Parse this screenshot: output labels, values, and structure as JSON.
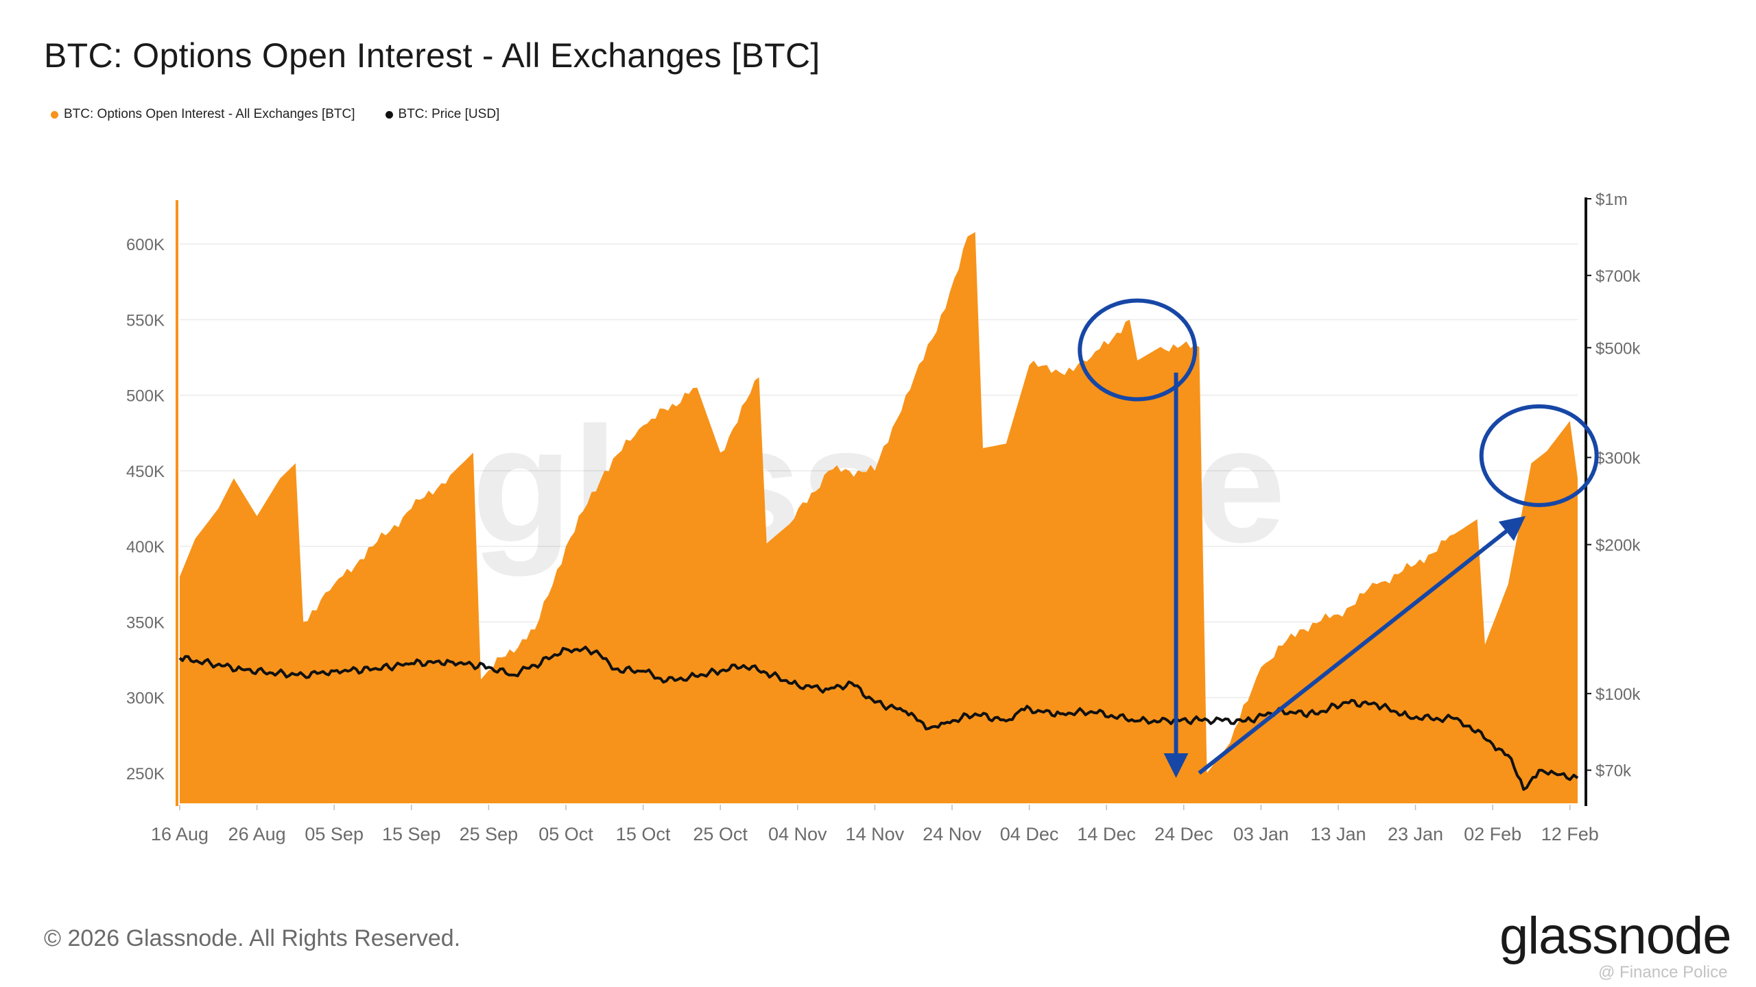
{
  "title": "BTC: Options Open Interest - All Exchanges [BTC]",
  "legend": [
    {
      "label": "BTC: Options Open Interest - All Exchanges [BTC]",
      "color": "#f7931a"
    },
    {
      "label": "BTC: Price [USD]",
      "color": "#111111"
    }
  ],
  "watermark": "glassnode",
  "footer": {
    "copyright": "© 2026 Glassnode. All Rights Reserved.",
    "logo": "glassnode",
    "credit": "@ Finance Police"
  },
  "colors": {
    "oi": "#f7931a",
    "price": "#111111",
    "annotation": "#1747a6",
    "grid": "#ebebeb"
  },
  "chart_data": {
    "type": "area",
    "x_axis": {
      "tick_labels": [
        "16 Aug",
        "26 Aug",
        "05 Sep",
        "15 Sep",
        "25 Sep",
        "05 Oct",
        "15 Oct",
        "25 Oct",
        "04 Nov",
        "14 Nov",
        "24 Nov",
        "04 Dec",
        "14 Dec",
        "24 Dec",
        "03 Jan",
        "13 Jan",
        "23 Jan",
        "02 Feb",
        "12 Feb"
      ],
      "start": "16 Aug",
      "end": "13 Feb"
    },
    "y_left": {
      "ticks": [
        "600K",
        "550K",
        "500K",
        "450K",
        "400K",
        "350K",
        "300K",
        "250K"
      ],
      "range": [
        230000,
        630000
      ]
    },
    "y_right": {
      "scale": "log",
      "ticks": [
        "$1m",
        "$700k",
        "$500k",
        "$300k",
        "$200k",
        "$100k",
        "$70k"
      ],
      "range": [
        60000,
        1000000
      ]
    },
    "series": [
      {
        "name": "BTC: Options Open Interest - All Exchanges [BTC]",
        "type": "area",
        "color": "#f7931a",
        "points": [
          [
            "16 Aug",
            380000
          ],
          [
            "18 Aug",
            405000
          ],
          [
            "21 Aug",
            425000
          ],
          [
            "23 Aug",
            445000
          ],
          [
            "26 Aug",
            420000
          ],
          [
            "29 Aug",
            445000
          ],
          [
            "31 Aug",
            455000
          ],
          [
            "1 Sep",
            350000
          ],
          [
            "5 Sep",
            375000
          ],
          [
            "10 Sep",
            400000
          ],
          [
            "15 Sep",
            425000
          ],
          [
            "20 Sep",
            447000
          ],
          [
            "23 Sep",
            462000
          ],
          [
            "24 Sep",
            312000
          ],
          [
            "25 Sep",
            318000
          ],
          [
            "1 Oct",
            345000
          ],
          [
            "5 Oct",
            400000
          ],
          [
            "10 Oct",
            450000
          ],
          [
            "15 Oct",
            480000
          ],
          [
            "22 Oct",
            505000
          ],
          [
            "25 Oct",
            462000
          ],
          [
            "30 Oct",
            512000
          ],
          [
            "31 Oct",
            402000
          ],
          [
            "3 Nov",
            415000
          ],
          [
            "8 Nov",
            450000
          ],
          [
            "14 Nov",
            450000
          ],
          [
            "18 Nov",
            500000
          ],
          [
            "22 Nov",
            542000
          ],
          [
            "26 Nov",
            605000
          ],
          [
            "27 Nov",
            608000
          ],
          [
            "28 Nov",
            465000
          ],
          [
            "1 Dec",
            468000
          ],
          [
            "4 Dec",
            520000
          ],
          [
            "8 Dec",
            515000
          ],
          [
            "12 Dec",
            525000
          ],
          [
            "17 Dec",
            550000
          ],
          [
            "18 Dec",
            523000
          ],
          [
            "21 Dec",
            532000
          ],
          [
            "26 Dec",
            532000
          ],
          [
            "27 Dec",
            250000
          ],
          [
            "30 Dec",
            270000
          ],
          [
            "3 Jan",
            320000
          ],
          [
            "8 Jan",
            345000
          ],
          [
            "13 Jan",
            355000
          ],
          [
            "18 Jan",
            375000
          ],
          [
            "23 Jan",
            388000
          ],
          [
            "28 Jan",
            408000
          ],
          [
            "31 Jan",
            418000
          ],
          [
            "1 Feb",
            335000
          ],
          [
            "4 Feb",
            375000
          ],
          [
            "7 Feb",
            455000
          ],
          [
            "9 Feb",
            463000
          ],
          [
            "12 Feb",
            483000
          ],
          [
            "13 Feb",
            445000
          ]
        ]
      },
      {
        "name": "BTC: Price [USD]",
        "type": "line",
        "color": "#111111",
        "points": [
          [
            "16 Aug",
            118000
          ],
          [
            "20 Aug",
            115000
          ],
          [
            "24 Aug",
            112000
          ],
          [
            "28 Aug",
            110000
          ],
          [
            "1 Sep",
            109000
          ],
          [
            "5 Sep",
            111000
          ],
          [
            "10 Sep",
            112000
          ],
          [
            "15 Sep",
            115000
          ],
          [
            "20 Sep",
            116000
          ],
          [
            "25 Sep",
            113000
          ],
          [
            "28 Sep",
            109000
          ],
          [
            "1 Oct",
            114000
          ],
          [
            "5 Oct",
            123000
          ],
          [
            "9 Oct",
            122000
          ],
          [
            "11 Oct",
            112000
          ],
          [
            "15 Oct",
            111000
          ],
          [
            "18 Oct",
            106000
          ],
          [
            "21 Oct",
            108000
          ],
          [
            "25 Oct",
            111000
          ],
          [
            "28 Oct",
            114000
          ],
          [
            "31 Oct",
            110000
          ],
          [
            "4 Nov",
            104000
          ],
          [
            "8 Nov",
            102000
          ],
          [
            "11 Nov",
            105000
          ],
          [
            "14 Nov",
            96000
          ],
          [
            "18 Nov",
            92000
          ],
          [
            "21 Nov",
            85000
          ],
          [
            "23 Nov",
            87000
          ],
          [
            "27 Nov",
            91000
          ],
          [
            "1 Dec",
            88000
          ],
          [
            "3 Dec",
            93000
          ],
          [
            "8 Dec",
            91000
          ],
          [
            "12 Dec",
            92000
          ],
          [
            "18 Dec",
            88000
          ],
          [
            "22 Dec",
            88000
          ],
          [
            "26 Dec",
            88500
          ],
          [
            "1 Jan",
            88000
          ],
          [
            "5 Jan",
            92000
          ],
          [
            "10 Jan",
            91000
          ],
          [
            "14 Jan",
            96000
          ],
          [
            "18 Jan",
            95000
          ],
          [
            "22 Jan",
            90000
          ],
          [
            "25 Jan",
            89000
          ],
          [
            "28 Jan",
            89000
          ],
          [
            "30 Jan",
            86000
          ],
          [
            "2 Feb",
            79000
          ],
          [
            "4 Feb",
            75000
          ],
          [
            "6 Feb",
            64000
          ],
          [
            "8 Feb",
            70000
          ],
          [
            "10 Feb",
            69000
          ],
          [
            "12 Feb",
            67000
          ],
          [
            "13 Feb",
            67500
          ]
        ]
      }
    ],
    "annotations": [
      {
        "type": "circle",
        "at": [
          "18 Dec",
          530000
        ]
      },
      {
        "type": "arrow-down",
        "from": [
          "23 Dec",
          515000
        ],
        "to": [
          "23 Dec",
          255000
        ]
      },
      {
        "type": "arrow-up",
        "from": [
          "26 Dec",
          250000
        ],
        "to": [
          "5 Feb",
          415000
        ]
      },
      {
        "type": "circle",
        "at": [
          "8 Feb",
          460000
        ]
      }
    ]
  }
}
